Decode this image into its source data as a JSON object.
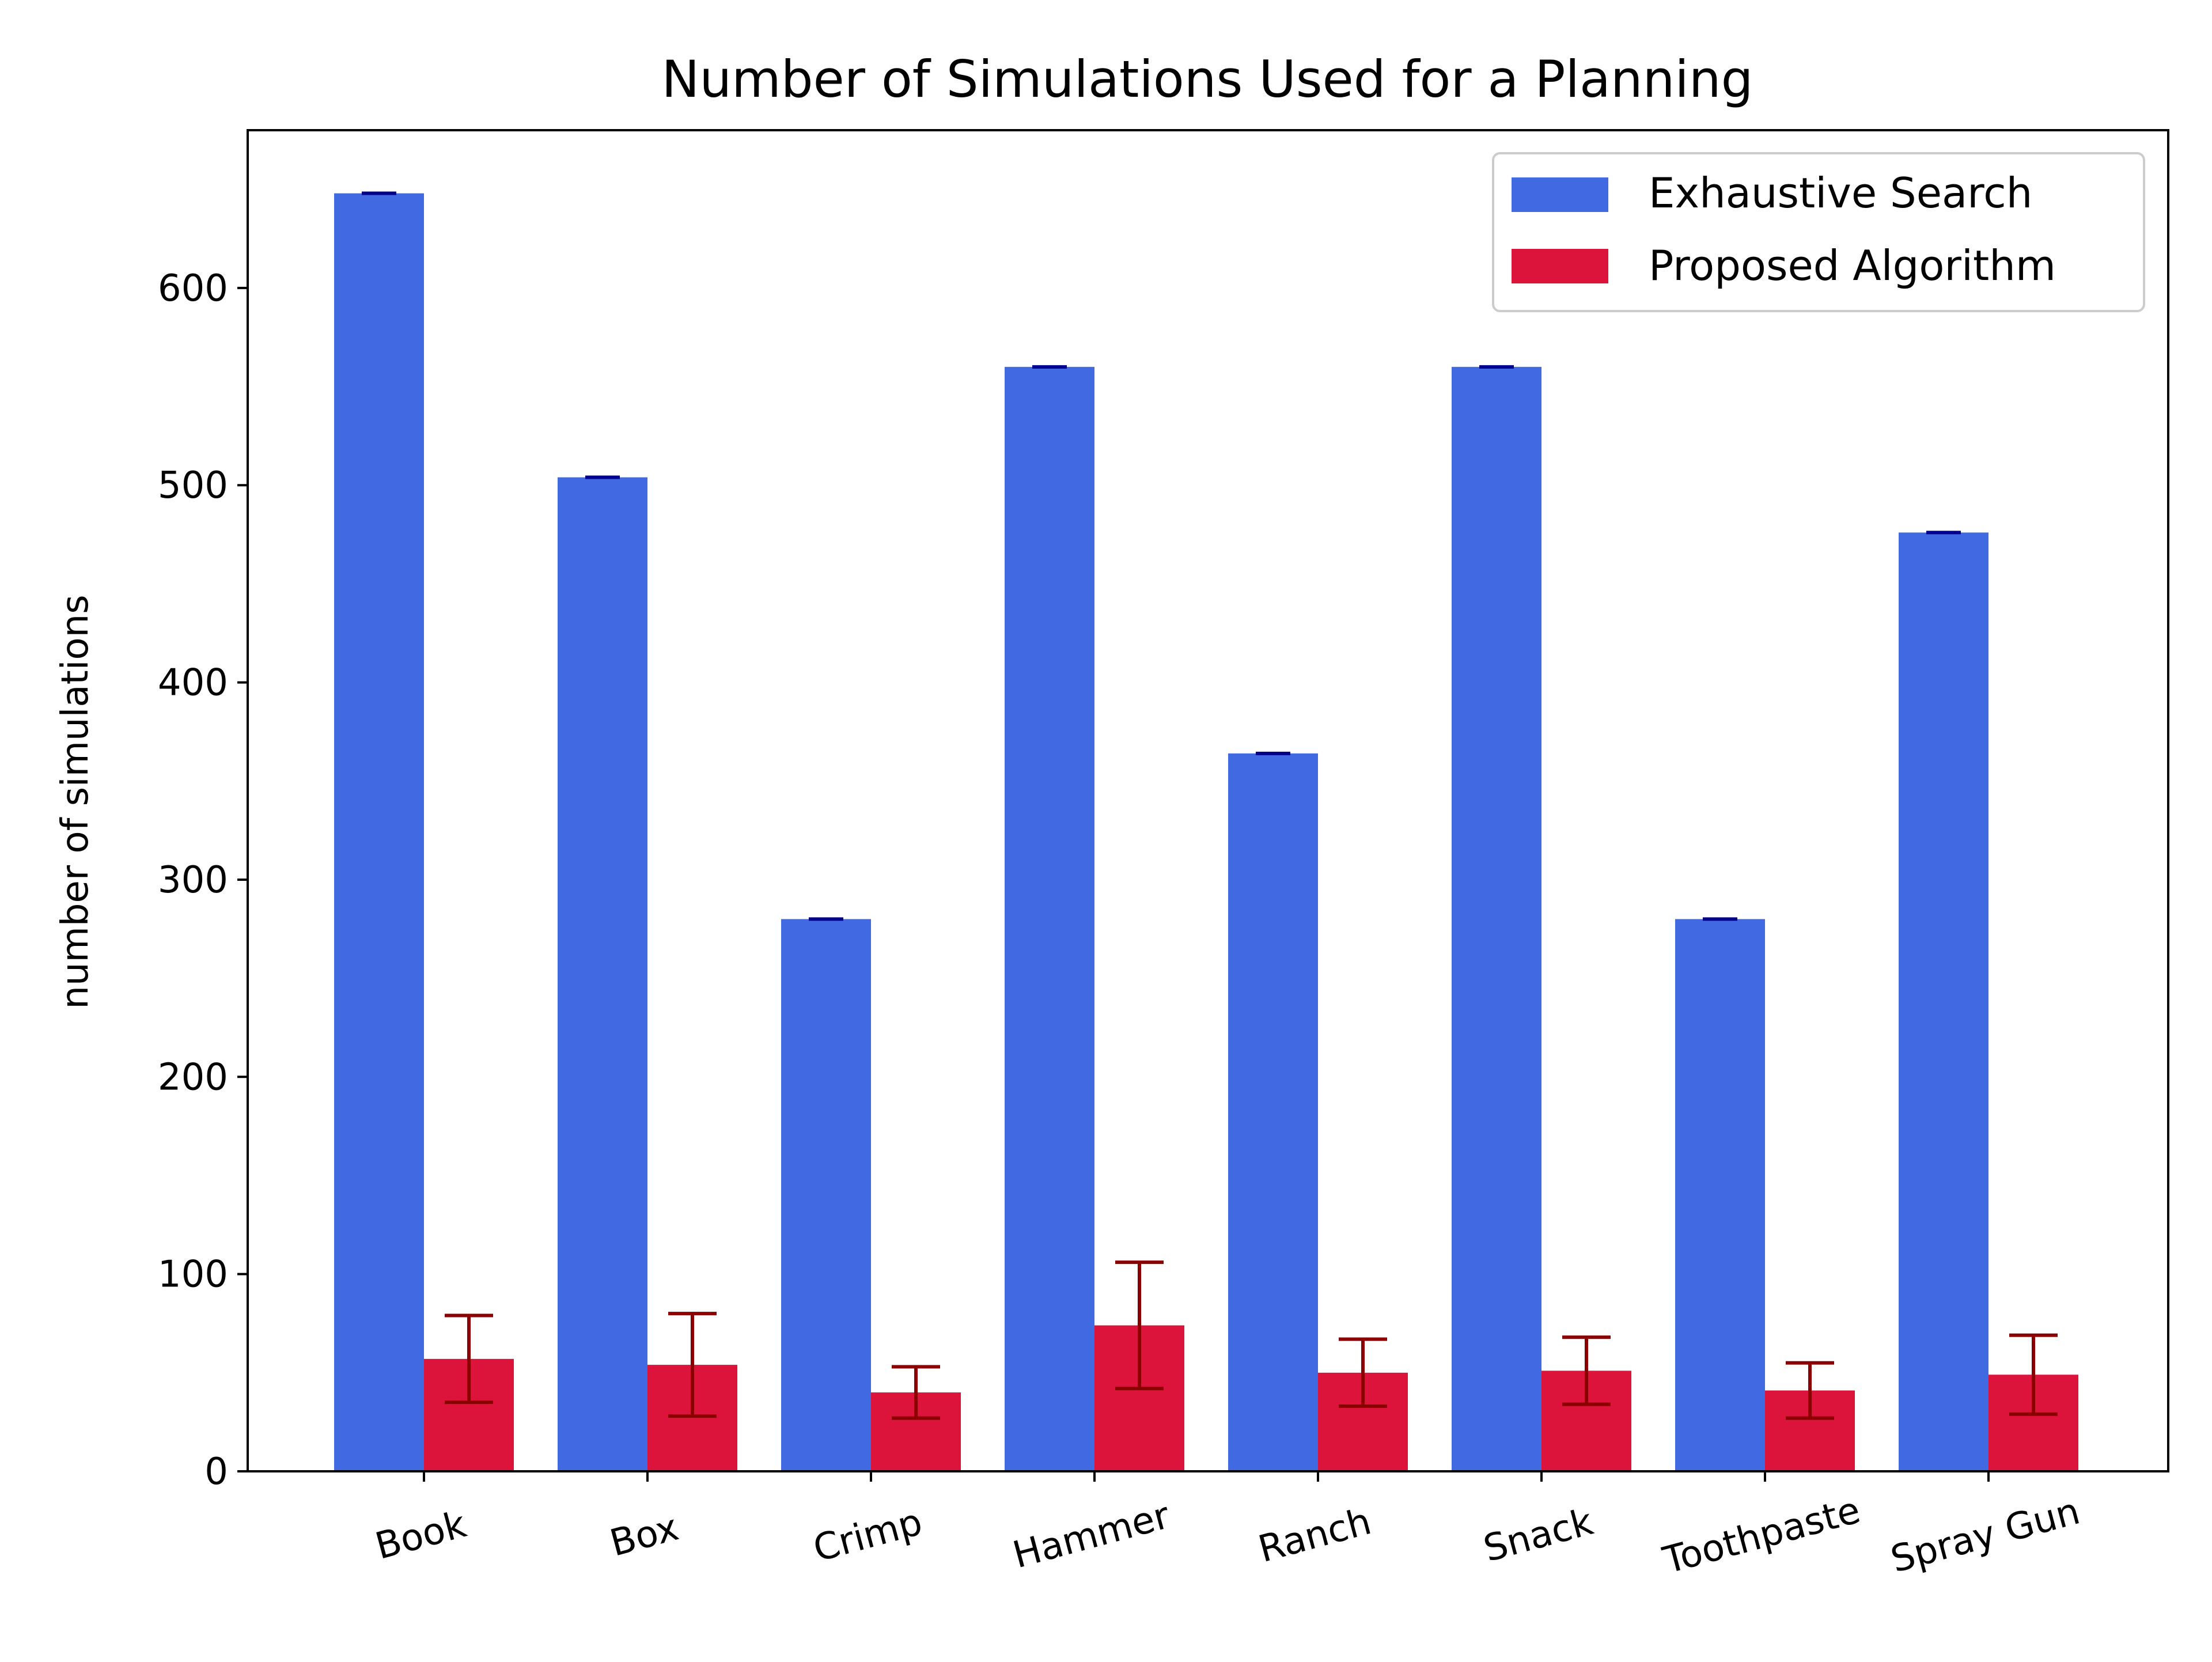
{
  "chart_data": {
    "type": "bar",
    "title": "Number of Simulations Used for a Planning",
    "xlabel": "",
    "ylabel": "number of simulations",
    "categories": [
      "Book",
      "Box",
      "Crimp",
      "Hammer",
      "Ranch",
      "Snack",
      "Toothpaste",
      "Spray Gun"
    ],
    "ylim": [
      0,
      680
    ],
    "yticks": [
      0,
      100,
      200,
      300,
      400,
      500,
      600
    ],
    "xtick_rotation_deg": -15,
    "grid": false,
    "legend": {
      "position": "top-right"
    },
    "series": [
      {
        "name": "Exhaustive Search",
        "color": "#4169e1",
        "error_color": "#00008b",
        "values": [
          648,
          504,
          280,
          560,
          364,
          560,
          280,
          476
        ],
        "errors": [
          0,
          0,
          0,
          0,
          0,
          0,
          0,
          0
        ]
      },
      {
        "name": "Proposed Algorithm",
        "color": "#dc143c",
        "error_color": "#8b0000",
        "values": [
          57,
          54,
          40,
          74,
          50,
          51,
          41,
          49
        ],
        "errors": [
          22,
          26,
          13,
          32,
          17,
          17,
          14,
          20
        ]
      }
    ]
  }
}
